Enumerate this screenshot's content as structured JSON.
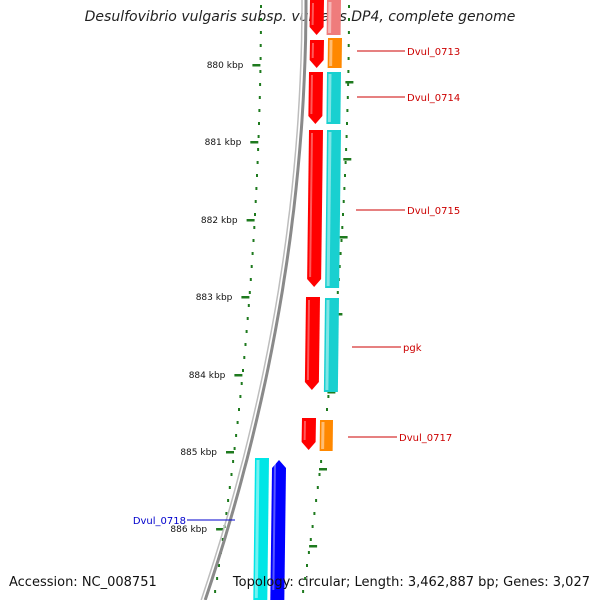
{
  "title": "Desulfovibrio vulgaris subsp. vulgaris DP4, complete genome",
  "accession_text": "Accession: NC_008751",
  "summary_text": "Topology: circular; Length: 3,462,887 bp; Genes: 3,027",
  "ticks": [
    "880 kbp",
    "881 kbp",
    "882 kbp",
    "883 kbp",
    "884 kbp",
    "885 kbp",
    "886 kbp"
  ],
  "genes": [
    {
      "label": "Dvul_0713",
      "color": "#cc0000"
    },
    {
      "label": "Dvul_0714",
      "color": "#cc0000"
    },
    {
      "label": "Dvul_0715",
      "color": "#cc0000"
    },
    {
      "label": "pgk",
      "color": "#cc0000"
    },
    {
      "label": "Dvul_0717",
      "color": "#cc0000"
    },
    {
      "label": "Dvul_0718",
      "color": "#0000cc"
    }
  ],
  "colors": {
    "forward_cds": "#ff0000",
    "forward_feature": "#19d0d0",
    "forward_rna_like": "#ff8800",
    "reverse_cds": "#0000ff",
    "reverse_feature": "#00e6e6",
    "backbone": "#8a8a8a",
    "tick": "#1e7a1e"
  }
}
